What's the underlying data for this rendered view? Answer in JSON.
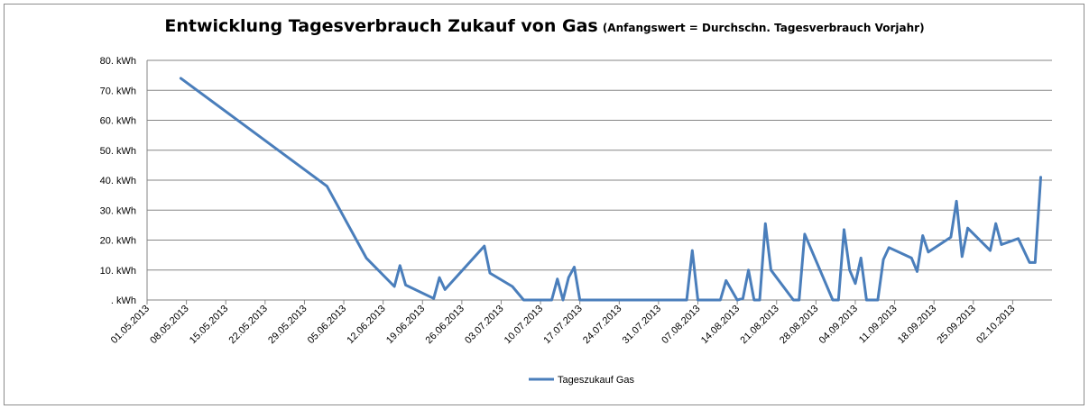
{
  "chart_data": {
    "type": "line",
    "title": "Entwicklung Tagesverbrauch Zukauf von Gas",
    "subtitle": "(Anfangswert = Durchschn. Tagesverbrauch Vorjahr)",
    "xlabel": "",
    "ylabel": "",
    "ylim": [
      0,
      80
    ],
    "xlim": [
      "01.05.2013",
      "09.10.2013"
    ],
    "y_ticks": [
      {
        "value": 0,
        "label": ". kWh"
      },
      {
        "value": 10,
        "label": "10. kWh"
      },
      {
        "value": 20,
        "label": "20. kWh"
      },
      {
        "value": 30,
        "label": "30. kWh"
      },
      {
        "value": 40,
        "label": "40. kWh"
      },
      {
        "value": 50,
        "label": "50. kWh"
      },
      {
        "value": 60,
        "label": "60. kWh"
      },
      {
        "value": 70,
        "label": "70. kWh"
      },
      {
        "value": 80,
        "label": "80. kWh"
      }
    ],
    "x_ticks": [
      "01.05.2013",
      "08.05.2013",
      "15.05.2013",
      "22.05.2013",
      "29.05.2013",
      "05.06.2013",
      "12.06.2013",
      "19.06.2013",
      "26.06.2013",
      "03.07.2013",
      "10.07.2013",
      "17.07.2013",
      "24.07.2013",
      "31.07.2013",
      "07.08.2013",
      "14.08.2013",
      "21.08.2013",
      "28.08.2013",
      "04.09.2013",
      "11.09.2013",
      "18.09.2013",
      "25.09.2013",
      "02.10.2013"
    ],
    "grid": true,
    "legend": "bottom",
    "color": "#4a7ebb",
    "series": [
      {
        "name": "Tageszukauf Gas",
        "points": [
          [
            "07.05.2013",
            74
          ],
          [
            "02.06.2013",
            38
          ],
          [
            "09.06.2013",
            14
          ],
          [
            "14.06.2013",
            4.5
          ],
          [
            "15.06.2013",
            11.5
          ],
          [
            "16.06.2013",
            5
          ],
          [
            "21.06.2013",
            0.5
          ],
          [
            "22.06.2013",
            7.5
          ],
          [
            "23.06.2013",
            3.5
          ],
          [
            "30.06.2013",
            18
          ],
          [
            "01.07.2013",
            9
          ],
          [
            "05.07.2013",
            4.5
          ],
          [
            "07.07.2013",
            0
          ],
          [
            "12.07.2013",
            0
          ],
          [
            "13.07.2013",
            7
          ],
          [
            "14.07.2013",
            0
          ],
          [
            "15.07.2013",
            7.5
          ],
          [
            "16.07.2013",
            11
          ],
          [
            "17.07.2013",
            0
          ],
          [
            "05.08.2013",
            0
          ],
          [
            "06.08.2013",
            16.5
          ],
          [
            "07.08.2013",
            0
          ],
          [
            "11.08.2013",
            0
          ],
          [
            "12.08.2013",
            6.5
          ],
          [
            "14.08.2013",
            0
          ],
          [
            "15.08.2013",
            0.5
          ],
          [
            "16.08.2013",
            10
          ],
          [
            "17.08.2013",
            0
          ],
          [
            "18.08.2013",
            0
          ],
          [
            "19.08.2013",
            25.5
          ],
          [
            "20.08.2013",
            10
          ],
          [
            "24.08.2013",
            0
          ],
          [
            "25.08.2013",
            0
          ],
          [
            "26.08.2013",
            22
          ],
          [
            "31.08.2013",
            0
          ],
          [
            "01.09.2013",
            0
          ],
          [
            "02.09.2013",
            23.5
          ],
          [
            "03.09.2013",
            10
          ],
          [
            "04.09.2013",
            5.5
          ],
          [
            "05.09.2013",
            14
          ],
          [
            "06.09.2013",
            0
          ],
          [
            "08.09.2013",
            0
          ],
          [
            "09.09.2013",
            13.5
          ],
          [
            "10.09.2013",
            17.5
          ],
          [
            "14.09.2013",
            14
          ],
          [
            "15.09.2013",
            9.5
          ],
          [
            "16.09.2013",
            21.5
          ],
          [
            "17.09.2013",
            16
          ],
          [
            "21.09.2013",
            21
          ],
          [
            "22.09.2013",
            33
          ],
          [
            "23.09.2013",
            14.5
          ],
          [
            "24.09.2013",
            24
          ],
          [
            "28.09.2013",
            16.5
          ],
          [
            "29.09.2013",
            25.5
          ],
          [
            "30.09.2013",
            18.5
          ],
          [
            "03.10.2013",
            20.5
          ],
          [
            "05.10.2013",
            12.5
          ],
          [
            "06.10.2013",
            12.5
          ],
          [
            "07.10.2013",
            41
          ]
        ]
      }
    ]
  }
}
